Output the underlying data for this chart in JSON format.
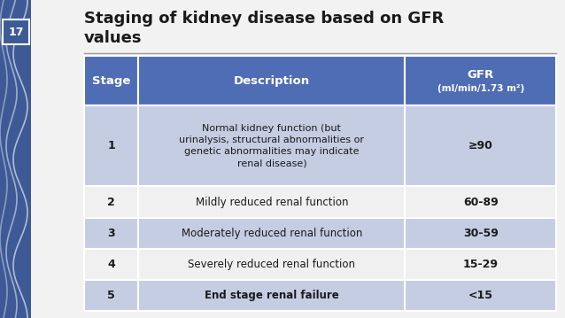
{
  "title_line1": "Staging of kidney disease based on GFR",
  "title_line2": "values",
  "slide_number": "17",
  "bg_color": "#f2f2f2",
  "accent_color": "#3d5a96",
  "header_color": "#4f6db5",
  "row_color_a": "#c5cde3",
  "row_color_b": "#f0f0f0",
  "text_dark": "#1a1a1a",
  "text_white": "#ffffff",
  "divider_color": "#999999",
  "stages": [
    "1",
    "2",
    "3",
    "4",
    "5"
  ],
  "desc_bold": [
    "Normal kidney function",
    "Mildly reduced",
    "Moderately reduced",
    "Severely reduced",
    "End stage renal failure"
  ],
  "desc_normal": [
    " (but\nurinalysis, structural abnormalities or\ngenetic abnormalities may indicate\nrenal disease)",
    " renal function",
    " renal function",
    " renal function",
    ""
  ],
  "gfr_values": [
    "≥90",
    "60-89",
    "30-59",
    "15-29",
    "<15"
  ]
}
